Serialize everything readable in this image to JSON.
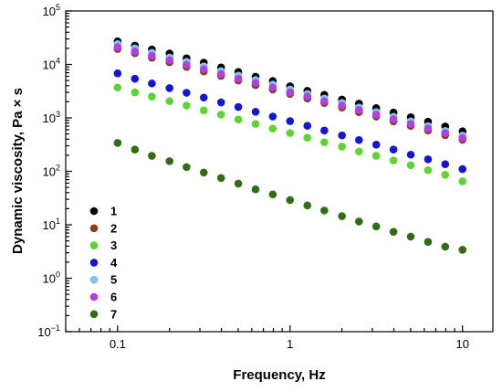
{
  "chart_data": {
    "type": "scatter",
    "xlabel": "Frequency, Hz",
    "ylabel": "Dynamic viscosity, Pa × s",
    "x_scale": "log",
    "y_scale": "log",
    "xlim": [
      0.05,
      15
    ],
    "ylim": [
      0.1,
      100000
    ],
    "x_ticks": [
      {
        "value": 0.1,
        "label": "0.1"
      },
      {
        "value": 1,
        "label": "1"
      },
      {
        "value": 10,
        "label": "10"
      }
    ],
    "y_ticks": [
      {
        "value": 0.1,
        "base": "10",
        "exp": "−1"
      },
      {
        "value": 1,
        "base": "10",
        "exp": "0"
      },
      {
        "value": 10,
        "base": "10",
        "exp": "1"
      },
      {
        "value": 100,
        "base": "10",
        "exp": "2"
      },
      {
        "value": 1000,
        "base": "10",
        "exp": "3"
      },
      {
        "value": 10000,
        "base": "10",
        "exp": "4"
      },
      {
        "value": 100000,
        "base": "10",
        "exp": "5"
      }
    ],
    "grid": false,
    "legend_position": "bottom-left",
    "x": [
      0.1,
      0.126,
      0.158,
      0.2,
      0.251,
      0.316,
      0.398,
      0.501,
      0.631,
      0.794,
      1,
      1.26,
      1.58,
      2,
      2.51,
      3.16,
      3.98,
      5.01,
      6.31,
      7.94,
      10
    ],
    "series": [
      {
        "name": "1",
        "color": "#000000",
        "values": [
          27000,
          22500,
          19000,
          16000,
          13000,
          10800,
          8800,
          7200,
          5900,
          4900,
          3900,
          3200,
          2700,
          2200,
          1850,
          1520,
          1260,
          1030,
          850,
          690,
          560
        ]
      },
      {
        "name": "2",
        "color": "#8b3a1a",
        "values": [
          19500,
          16200,
          13300,
          11000,
          9000,
          7400,
          6100,
          5000,
          4100,
          3400,
          2800,
          2300,
          1900,
          1560,
          1280,
          1060,
          860,
          710,
          580,
          475,
          390
        ]
      },
      {
        "name": "3",
        "color": "#5cd62e",
        "values": [
          3700,
          3000,
          2500,
          2050,
          1700,
          1380,
          1150,
          930,
          770,
          630,
          520,
          425,
          350,
          290,
          235,
          195,
          160,
          130,
          105,
          86,
          65
        ]
      },
      {
        "name": "4",
        "color": "#1515d6",
        "values": [
          6800,
          5400,
          4400,
          3600,
          2950,
          2400,
          1950,
          1600,
          1300,
          1060,
          870,
          710,
          580,
          470,
          385,
          315,
          255,
          205,
          168,
          136,
          110
        ]
      },
      {
        "name": "5",
        "color": "#7ec4f2",
        "values": [
          24000,
          20000,
          16500,
          13500,
          11200,
          9200,
          7500,
          6200,
          5100,
          4200,
          3400,
          2800,
          2300,
          1900,
          1560,
          1280,
          1050,
          860,
          700,
          570,
          465
        ]
      },
      {
        "name": "6",
        "color": "#b23fe0",
        "values": [
          21000,
          17500,
          14500,
          12000,
          9800,
          8100,
          6600,
          5400,
          4500,
          3700,
          3000,
          2500,
          2050,
          1700,
          1400,
          1150,
          940,
          770,
          630,
          515,
          420
        ]
      },
      {
        "name": "7",
        "color": "#2f6e14",
        "values": [
          340,
          255,
          195,
          155,
          120,
          95,
          75,
          59,
          46,
          37,
          29,
          23,
          18.5,
          14.5,
          11.5,
          9.3,
          7.4,
          6,
          4.8,
          3.9,
          3.4
        ]
      }
    ]
  }
}
